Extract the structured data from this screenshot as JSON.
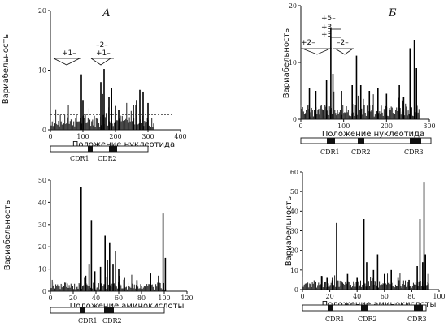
{
  "chart_data": [
    {
      "id": "A-top",
      "type": "bar",
      "panel_label": "А",
      "ylabel": "Вариабельность",
      "xlabel": "Положение нуклеотида",
      "xlim": [
        0,
        400
      ],
      "ylim": [
        0,
        20
      ],
      "xticks": [
        0,
        100,
        200,
        300,
        400
      ],
      "yticks": [
        0,
        10,
        20
      ],
      "threshold": 2.5,
      "annotations": [
        "+1–",
        "–2–",
        "+1–"
      ],
      "cdr_labels": [
        "CDR1",
        "CDR2"
      ],
      "x_range": [
        0,
        320
      ],
      "peaks": [
        [
          95,
          9.3
        ],
        [
          100,
          5
        ],
        [
          155,
          8
        ],
        [
          160,
          6
        ],
        [
          165,
          10.2
        ],
        [
          180,
          5.5
        ],
        [
          188,
          7
        ],
        [
          200,
          4
        ],
        [
          210,
          3.4
        ],
        [
          255,
          4.2
        ],
        [
          265,
          5
        ],
        [
          275,
          6.7
        ],
        [
          285,
          6.4
        ],
        [
          300,
          4.5
        ]
      ]
    },
    {
      "id": "B-top",
      "type": "bar",
      "panel_label": "Б",
      "ylabel": "Вариабельность",
      "xlabel": "Положение нуклеотида",
      "xlim": [
        0,
        300
      ],
      "ylim": [
        0,
        20
      ],
      "xticks": [
        0,
        100,
        200,
        300
      ],
      "yticks": [
        0,
        10,
        20
      ],
      "threshold": 2.5,
      "annotations": [
        "+5–",
        "+3",
        "+3",
        "+2–",
        "–2–"
      ],
      "cdr_labels": [
        "CDR1",
        "CDR2",
        "CDR3"
      ],
      "x_range": [
        0,
        280
      ],
      "peaks": [
        [
          20,
          5.5
        ],
        [
          35,
          5
        ],
        [
          60,
          7
        ],
        [
          70,
          16
        ],
        [
          75,
          8
        ],
        [
          95,
          5
        ],
        [
          120,
          6
        ],
        [
          130,
          11.2
        ],
        [
          140,
          6
        ],
        [
          160,
          5
        ],
        [
          180,
          5.5
        ],
        [
          200,
          4.5
        ],
        [
          230,
          6
        ],
        [
          240,
          4
        ],
        [
          255,
          12.5
        ],
        [
          265,
          14
        ],
        [
          270,
          9
        ]
      ]
    },
    {
      "id": "A-bottom",
      "type": "bar",
      "ylabel": "Вариабельность",
      "xlabel": "Положение аминокислоты",
      "xlim": [
        0,
        120
      ],
      "ylim": [
        0,
        50
      ],
      "xticks": [
        0,
        20,
        40,
        60,
        80,
        100,
        120
      ],
      "yticks": [
        0,
        10,
        20,
        30,
        40,
        50
      ],
      "cdr_labels": [
        "CDR1",
        "CDR2"
      ],
      "x_range": [
        0,
        102
      ],
      "peaks": [
        [
          27,
          47
        ],
        [
          31,
          7
        ],
        [
          34,
          12
        ],
        [
          36,
          32
        ],
        [
          39,
          9
        ],
        [
          44,
          11
        ],
        [
          48,
          25
        ],
        [
          50,
          14
        ],
        [
          52,
          22
        ],
        [
          55,
          12
        ],
        [
          57,
          18
        ],
        [
          60,
          10
        ],
        [
          65,
          6
        ],
        [
          76,
          5
        ],
        [
          88,
          8
        ],
        [
          95,
          7
        ],
        [
          99,
          35
        ],
        [
          101,
          15
        ]
      ]
    },
    {
      "id": "B-bottom",
      "type": "bar",
      "ylabel": "Вариабельность",
      "xlabel": "Положение аминокислоты",
      "xlim": [
        0,
        100
      ],
      "ylim": [
        0,
        60
      ],
      "xticks": [
        0,
        20,
        40,
        60,
        80,
        100
      ],
      "yticks": [
        0,
        10,
        20,
        30,
        40,
        50,
        60
      ],
      "cdr_labels": [
        "CDR1",
        "CDR2",
        "CDR3"
      ],
      "x_range": [
        0,
        93
      ],
      "peaks": [
        [
          14,
          7
        ],
        [
          18,
          6
        ],
        [
          22,
          6
        ],
        [
          25,
          34
        ],
        [
          33,
          8
        ],
        [
          40,
          6
        ],
        [
          45,
          36
        ],
        [
          47,
          14
        ],
        [
          52,
          10
        ],
        [
          55,
          18
        ],
        [
          60,
          8
        ],
        [
          65,
          10
        ],
        [
          70,
          6
        ],
        [
          78,
          5
        ],
        [
          84,
          12
        ],
        [
          86,
          36
        ],
        [
          88,
          14
        ],
        [
          89,
          55
        ],
        [
          90,
          18
        ],
        [
          92,
          8
        ]
      ]
    }
  ]
}
